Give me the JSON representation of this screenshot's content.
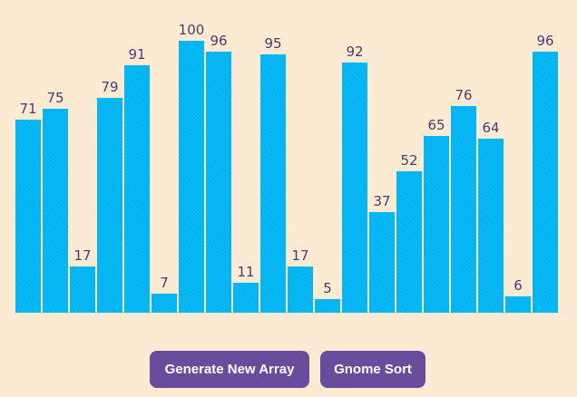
{
  "chart_data": {
    "type": "bar",
    "values": [
      71,
      75,
      17,
      79,
      91,
      7,
      100,
      96,
      11,
      95,
      17,
      5,
      92,
      37,
      52,
      65,
      76,
      64,
      6,
      96
    ],
    "ylim": [
      0,
      100
    ],
    "bar_color": "#00b4f4",
    "label_color": "#4a3b6e"
  },
  "controls": {
    "generate_label": "Generate New Array",
    "sort_label": "Gnome Sort",
    "button_color": "#6a4c9c"
  },
  "page": {
    "background": "#fcebd2"
  }
}
